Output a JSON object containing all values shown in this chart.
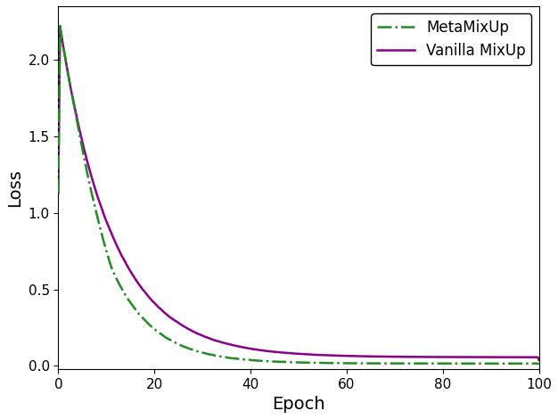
{
  "title": "",
  "xlabel": "Epoch",
  "ylabel": "Loss",
  "xlim": [
    0,
    100
  ],
  "ylim": [
    -0.02,
    2.35
  ],
  "metamixup_color": "#228B22",
  "vanilla_color": "#8B008B",
  "metamixup_label": "MetaMixUp",
  "vanilla_label": "Vanilla MixUp",
  "linewidth": 1.8,
  "legend_fontsize": 12,
  "axis_label_fontsize": 14,
  "tick_fontsize": 11,
  "figsize": [
    6.26,
    4.7
  ],
  "dpi": 100,
  "vanilla_start": 2.27,
  "vanilla_a": 2.22,
  "vanilla_k": 0.092,
  "vanilla_end": 0.056,
  "meta_start": 2.27,
  "meta_a": 2.22,
  "meta_k": 0.115,
  "meta_end": 0.015
}
